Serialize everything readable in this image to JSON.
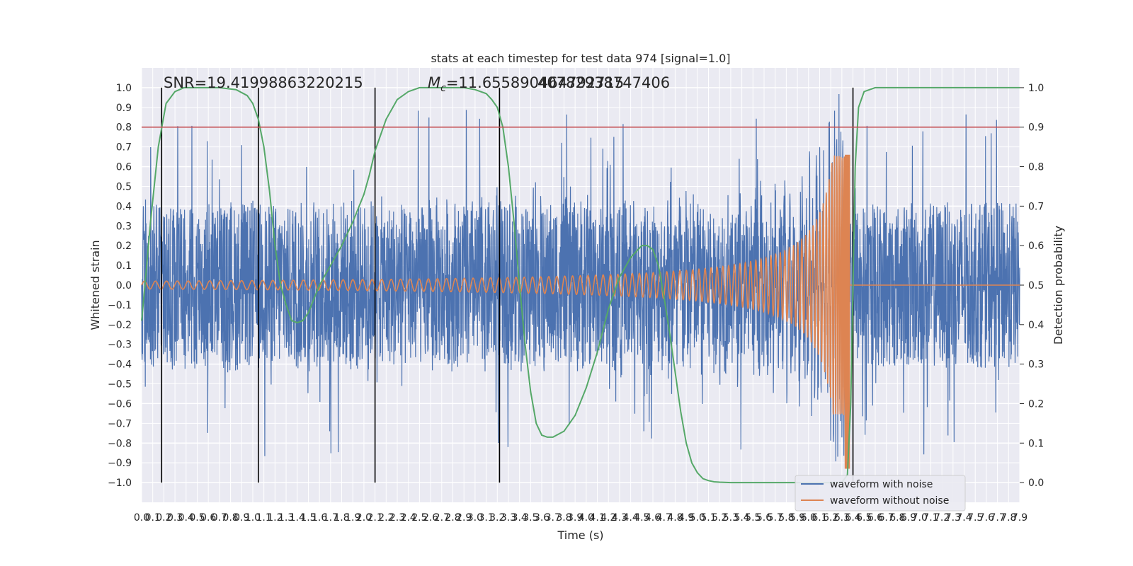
{
  "chart_data": {
    "type": "line",
    "title": "stats at each timestep for test data 974 [signal=1.0]",
    "xlabel": "Time (s)",
    "ylabel": "Whitened strain",
    "y2label": "Detection probability",
    "xlim": [
      0.0,
      7.9
    ],
    "ylim": [
      -1.1,
      1.1
    ],
    "y2lim": [
      -0.05,
      1.05
    ],
    "x_ticks": [
      "0.0",
      "0.1",
      "0.2",
      "0.3",
      "0.4",
      "0.5",
      "0.6",
      "0.7",
      "0.8",
      "0.9",
      "1.0",
      "1.1",
      "1.2",
      "1.3",
      "1.4",
      "1.5",
      "1.6",
      "1.7",
      "1.8",
      "1.9",
      "2.0",
      "2.1",
      "2.2",
      "2.3",
      "2.4",
      "2.5",
      "2.6",
      "2.7",
      "2.8",
      "2.9",
      "3.0",
      "3.1",
      "3.2",
      "3.3",
      "3.4",
      "3.5",
      "3.6",
      "3.7",
      "3.8",
      "3.9",
      "4.0",
      "4.1",
      "4.2",
      "4.3",
      "4.4",
      "4.5",
      "4.6",
      "4.7",
      "4.8",
      "4.9",
      "5.0",
      "5.1",
      "5.2",
      "5.3",
      "5.4",
      "5.5",
      "5.6",
      "5.7",
      "5.8",
      "5.9",
      "6.0",
      "6.1",
      "6.2",
      "6.3",
      "6.4",
      "6.5",
      "6.6",
      "6.7",
      "6.8",
      "6.9",
      "7.0",
      "7.1",
      "7.2",
      "7.3",
      "7.4",
      "7.5",
      "7.6",
      "7.7",
      "7.8",
      "7.9"
    ],
    "y_ticks": [
      "−1.0",
      "−0.9",
      "−0.8",
      "−0.7",
      "−0.6",
      "−0.5",
      "−0.4",
      "−0.3",
      "−0.2",
      "−0.1",
      "0.0",
      "0.1",
      "0.2",
      "0.3",
      "0.4",
      "0.5",
      "0.6",
      "0.7",
      "0.8",
      "0.9",
      "1.0"
    ],
    "y2_ticks": [
      "0.0",
      "0.1",
      "0.2",
      "0.3",
      "0.4",
      "0.5",
      "0.6",
      "0.7",
      "0.8",
      "0.9",
      "1.0"
    ],
    "grid": true,
    "legend_position": "bottom-right",
    "annotations": {
      "snr": "SNR=19.41998863220215",
      "mc_symbol": "M",
      "mc_sub": "c",
      "mc_value": "=11.655890464792715",
      "mc_overlap": "40782938747406"
    },
    "threshold_line": {
      "y2": 0.9,
      "color": "#c44e52"
    },
    "vertical_lines_x": [
      0.18,
      1.05,
      2.1,
      3.22,
      6.4
    ],
    "series": [
      {
        "name": "waveform with noise",
        "color": "#4c72b0",
        "description_values": {
          "noise_band": [
            -0.4,
            0.4
          ],
          "peak_extremes": [
            -1.0,
            0.98
          ]
        }
      },
      {
        "name": "waveform without noise",
        "color": "#dd8452",
        "chirp": {
          "start_x": 0.0,
          "merger_x": 6.35,
          "start_amplitude": 0.02,
          "peak_max": 0.66,
          "peak_min": -0.93,
          "start_cycles_per_s": 10
        }
      },
      {
        "color": "#55a868",
        "axis": "y2",
        "x": [
          0.0,
          0.03,
          0.08,
          0.15,
          0.22,
          0.3,
          0.38,
          0.45,
          0.55,
          0.7,
          0.85,
          0.95,
          1.0,
          1.05,
          1.1,
          1.15,
          1.2,
          1.25,
          1.3,
          1.35,
          1.4,
          1.45,
          1.5,
          1.6,
          1.7,
          1.8,
          1.9,
          2.0,
          2.05,
          2.1,
          2.15,
          2.2,
          2.3,
          2.4,
          2.5,
          2.7,
          2.9,
          3.0,
          3.1,
          3.15,
          3.2,
          3.25,
          3.3,
          3.35,
          3.4,
          3.45,
          3.5,
          3.55,
          3.6,
          3.65,
          3.7,
          3.8,
          3.9,
          4.0,
          4.1,
          4.2,
          4.3,
          4.4,
          4.5,
          4.55,
          4.6,
          4.65,
          4.7,
          4.75,
          4.8,
          4.85,
          4.9,
          4.95,
          5.0,
          5.05,
          5.1,
          5.15,
          5.2,
          5.3,
          5.4,
          5.5,
          5.6,
          5.8,
          6.0,
          6.2,
          6.3,
          6.35,
          6.38,
          6.4,
          6.42,
          6.45,
          6.5,
          6.6,
          6.8,
          7.0,
          7.5,
          7.9
        ],
        "values": [
          0.41,
          0.5,
          0.66,
          0.85,
          0.96,
          0.99,
          1.0,
          1.0,
          1.0,
          1.0,
          0.995,
          0.98,
          0.96,
          0.92,
          0.85,
          0.74,
          0.6,
          0.5,
          0.45,
          0.41,
          0.405,
          0.41,
          0.43,
          0.5,
          0.55,
          0.6,
          0.66,
          0.73,
          0.78,
          0.84,
          0.88,
          0.92,
          0.97,
          0.99,
          1.0,
          1.0,
          1.0,
          0.995,
          0.985,
          0.97,
          0.95,
          0.9,
          0.8,
          0.66,
          0.5,
          0.35,
          0.23,
          0.15,
          0.12,
          0.115,
          0.115,
          0.13,
          0.17,
          0.24,
          0.33,
          0.44,
          0.52,
          0.57,
          0.6,
          0.6,
          0.59,
          0.55,
          0.47,
          0.38,
          0.28,
          0.18,
          0.1,
          0.05,
          0.025,
          0.01,
          0.005,
          0.002,
          0.001,
          0.0,
          0.0,
          0.0,
          0.0,
          0.0,
          0.0,
          0.0,
          0.0,
          0.02,
          0.2,
          0.5,
          0.8,
          0.95,
          0.99,
          1.0,
          1.0,
          1.0,
          1.0,
          1.0
        ]
      }
    ]
  }
}
